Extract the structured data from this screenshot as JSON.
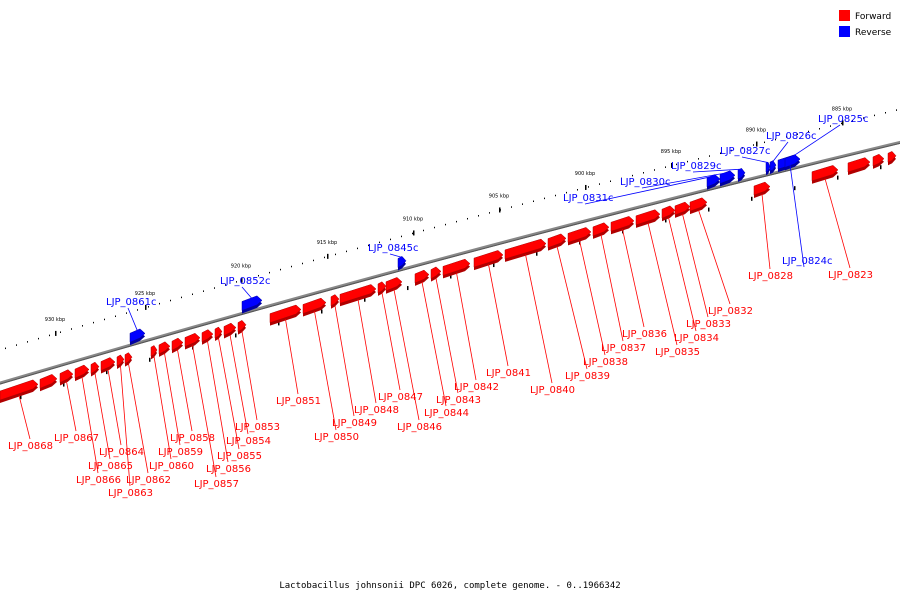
{
  "caption": "Lactobacillus johnsonii DPC 6026, complete genome. - 0..1966342",
  "legend": [
    {
      "label": "Forward",
      "color": "#ff0000"
    },
    {
      "label": "Reverse",
      "color": "#0000ff"
    }
  ],
  "colors": {
    "forward": "#ff0000",
    "reverse": "#0000ff",
    "backbone": "#888888",
    "tick": "#000000"
  },
  "scale_labels": [
    {
      "label": "885 kbp"
    },
    {
      "label": "890 kbp"
    },
    {
      "label": "895 kbp"
    },
    {
      "label": "900 kbp"
    },
    {
      "label": "905 kbp"
    },
    {
      "label": "910 kbp"
    },
    {
      "label": "915 kbp"
    },
    {
      "label": "920 kbp"
    },
    {
      "label": "925 kbp"
    },
    {
      "label": "930 kbp"
    }
  ],
  "genes": [
    {
      "name": "LJP_0823",
      "strand": "forward"
    },
    {
      "name": "LJP_0824c",
      "strand": "reverse"
    },
    {
      "name": "LJP_0825c",
      "strand": "reverse"
    },
    {
      "name": "LJP_0826c",
      "strand": "reverse"
    },
    {
      "name": "LJP_0827c",
      "strand": "reverse"
    },
    {
      "name": "LJP_0828",
      "strand": "forward"
    },
    {
      "name": "LJP_0829c",
      "strand": "reverse"
    },
    {
      "name": "LJP_0830c",
      "strand": "reverse"
    },
    {
      "name": "LJP_0831c",
      "strand": "reverse"
    },
    {
      "name": "LJP_0832",
      "strand": "forward"
    },
    {
      "name": "LJP_0833",
      "strand": "forward"
    },
    {
      "name": "LJP_0834",
      "strand": "forward"
    },
    {
      "name": "LJP_0835",
      "strand": "forward"
    },
    {
      "name": "LJP_0836",
      "strand": "forward"
    },
    {
      "name": "LJP_0837",
      "strand": "forward"
    },
    {
      "name": "LJP_0838",
      "strand": "forward"
    },
    {
      "name": "LJP_0839",
      "strand": "forward"
    },
    {
      "name": "LJP_0840",
      "strand": "forward"
    },
    {
      "name": "LJP_0841",
      "strand": "forward"
    },
    {
      "name": "LJP_0842",
      "strand": "forward"
    },
    {
      "name": "LJP_0843",
      "strand": "forward"
    },
    {
      "name": "LJP_0844",
      "strand": "forward"
    },
    {
      "name": "LJP_0845c",
      "strand": "reverse"
    },
    {
      "name": "LJP_0846",
      "strand": "forward"
    },
    {
      "name": "LJP_0847",
      "strand": "forward"
    },
    {
      "name": "LJP_0848",
      "strand": "forward"
    },
    {
      "name": "LJP_0849",
      "strand": "forward"
    },
    {
      "name": "LJP_0850",
      "strand": "forward"
    },
    {
      "name": "LJP_0851",
      "strand": "forward"
    },
    {
      "name": "LJP_0852c",
      "strand": "reverse"
    },
    {
      "name": "LJP_0853",
      "strand": "forward"
    },
    {
      "name": "LJP_0854",
      "strand": "forward"
    },
    {
      "name": "LJP_0855",
      "strand": "forward"
    },
    {
      "name": "LJP_0856",
      "strand": "forward"
    },
    {
      "name": "LJP_0857",
      "strand": "forward"
    },
    {
      "name": "LJP_0858",
      "strand": "forward"
    },
    {
      "name": "LJP_0859",
      "strand": "forward"
    },
    {
      "name": "LJP_0860",
      "strand": "forward"
    },
    {
      "name": "LJP_0861c",
      "strand": "reverse"
    },
    {
      "name": "LJP_0862",
      "strand": "forward"
    },
    {
      "name": "LJP_0863",
      "strand": "forward"
    },
    {
      "name": "LJP_0864",
      "strand": "forward"
    },
    {
      "name": "LJP_0865",
      "strand": "forward"
    },
    {
      "name": "LJP_0866",
      "strand": "forward"
    },
    {
      "name": "LJP_0867",
      "strand": "forward"
    },
    {
      "name": "LJP_0868",
      "strand": "forward"
    }
  ]
}
